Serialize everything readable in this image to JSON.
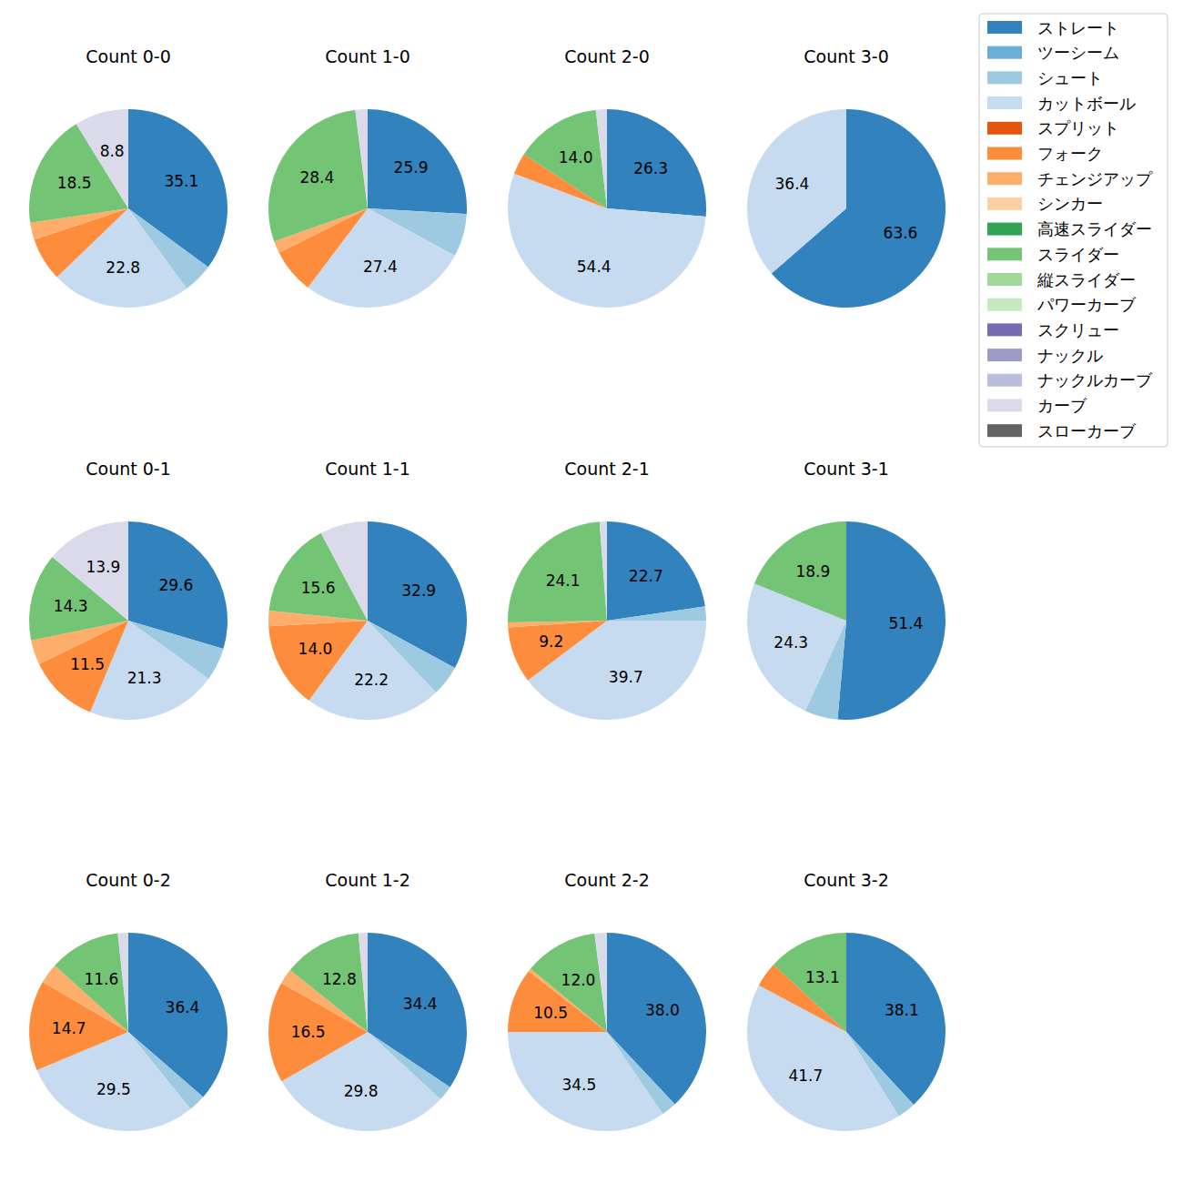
{
  "chart_data": {
    "type": "pie",
    "legend": "upper right",
    "data_labels": true,
    "categories": [
      "ストレート",
      "ツーシーム",
      "シュート",
      "カットボール",
      "スプリット",
      "フォーク",
      "チェンジアップ",
      "シンカー",
      "高速スライダー",
      "スライダー",
      "縦スライダー",
      "パワーカーブ",
      "スクリュー",
      "ナックル",
      "ナックルカーブ",
      "カーブ",
      "スローカーブ"
    ],
    "colors": [
      "#3182bd",
      "#6baed6",
      "#9ecae1",
      "#c6dbef",
      "#e6550d",
      "#fd8d3c",
      "#fdae6b",
      "#fdd0a2",
      "#31a354",
      "#74c476",
      "#a1d99b",
      "#c7e9c0",
      "#756bb1",
      "#9e9ac8",
      "#bcbddc",
      "#dadaeb",
      "#636363"
    ],
    "series": [
      {
        "name": "Count 0-0",
        "values": [
          35.1,
          0,
          4.9,
          22.8,
          0,
          7.1,
          2.8,
          0,
          0,
          18.5,
          0,
          0,
          0,
          0,
          0,
          8.8,
          0
        ],
        "value_labels": [
          "35.1",
          null,
          null,
          "22.8",
          null,
          null,
          null,
          null,
          null,
          "18.5",
          null,
          null,
          null,
          null,
          null,
          "8.8",
          null
        ]
      },
      {
        "name": "Count 1-0",
        "values": [
          25.9,
          0,
          7.0,
          27.4,
          0,
          7.3,
          2.0,
          0,
          0,
          28.4,
          0,
          0,
          0,
          0,
          0,
          2.0,
          0
        ],
        "value_labels": [
          "25.9",
          null,
          null,
          "27.4",
          null,
          null,
          null,
          null,
          null,
          "28.4",
          null,
          null,
          null,
          null,
          null,
          null,
          null
        ]
      },
      {
        "name": "Count 2-0",
        "values": [
          26.3,
          0,
          0,
          54.4,
          0,
          3.5,
          0,
          0,
          0,
          14.0,
          0,
          0,
          0,
          0,
          0,
          1.8,
          0
        ],
        "value_labels": [
          "26.3",
          null,
          null,
          "54.4",
          null,
          null,
          null,
          null,
          null,
          "14.0",
          null,
          null,
          null,
          null,
          null,
          null,
          null
        ]
      },
      {
        "name": "Count 3-0",
        "values": [
          63.6,
          0,
          0,
          36.4,
          0,
          0,
          0,
          0,
          0,
          0,
          0,
          0,
          0,
          0,
          0,
          0,
          0
        ],
        "value_labels": [
          "63.6",
          null,
          null,
          "36.4",
          null,
          null,
          null,
          null,
          null,
          null,
          null,
          null,
          null,
          null,
          null,
          null,
          null
        ]
      },
      {
        "name": "Count 0-1",
        "values": [
          29.6,
          0,
          5.4,
          21.3,
          0,
          11.5,
          4.0,
          0,
          0,
          14.3,
          0,
          0,
          0,
          0,
          0,
          13.9,
          0
        ],
        "value_labels": [
          "29.6",
          null,
          null,
          "21.3",
          null,
          "11.5",
          null,
          null,
          null,
          "14.3",
          null,
          null,
          null,
          null,
          null,
          "13.9",
          null
        ]
      },
      {
        "name": "Count 1-1",
        "values": [
          32.9,
          0,
          5.0,
          22.2,
          0,
          14.0,
          2.5,
          0,
          0,
          15.6,
          0,
          0,
          0,
          0,
          0,
          7.8,
          0
        ],
        "value_labels": [
          "32.9",
          null,
          null,
          "22.2",
          null,
          "14.0",
          null,
          null,
          null,
          "15.6",
          null,
          null,
          null,
          null,
          null,
          null,
          null
        ]
      },
      {
        "name": "Count 2-1",
        "values": [
          22.7,
          0,
          2.3,
          39.7,
          0,
          9.2,
          0.8,
          0,
          0,
          24.1,
          0,
          0,
          0,
          0,
          0,
          1.2,
          0
        ],
        "value_labels": [
          "22.7",
          null,
          null,
          "39.7",
          null,
          "9.2",
          null,
          null,
          null,
          "24.1",
          null,
          null,
          null,
          null,
          null,
          null,
          null
        ]
      },
      {
        "name": "Count 3-1",
        "values": [
          51.4,
          0,
          5.4,
          24.3,
          0,
          0,
          0,
          0,
          0,
          18.9,
          0,
          0,
          0,
          0,
          0,
          0,
          0
        ],
        "value_labels": [
          "51.4",
          null,
          null,
          "24.3",
          null,
          null,
          null,
          null,
          null,
          "18.9",
          null,
          null,
          null,
          null,
          null,
          null,
          null
        ]
      },
      {
        "name": "Count 0-2",
        "values": [
          36.4,
          0,
          2.8,
          29.5,
          0,
          14.7,
          3.3,
          0,
          0,
          11.6,
          0,
          0,
          0,
          0,
          0,
          1.7,
          0
        ],
        "value_labels": [
          "36.4",
          null,
          null,
          "29.5",
          null,
          "14.7",
          null,
          null,
          null,
          "11.6",
          null,
          null,
          null,
          null,
          null,
          null,
          null
        ]
      },
      {
        "name": "Count 1-2",
        "values": [
          34.4,
          0,
          2.5,
          29.8,
          0,
          16.5,
          2.5,
          0,
          0,
          12.8,
          0,
          0,
          0,
          0,
          0,
          1.5,
          0
        ],
        "value_labels": [
          "34.4",
          null,
          null,
          "29.8",
          null,
          "16.5",
          null,
          null,
          null,
          "12.8",
          null,
          null,
          null,
          null,
          null,
          null,
          null
        ]
      },
      {
        "name": "Count 2-2",
        "values": [
          38.0,
          0,
          2.5,
          34.5,
          0,
          10.5,
          0.5,
          0,
          0,
          12.0,
          0,
          0,
          0,
          0,
          0,
          2.0,
          0
        ],
        "value_labels": [
          "38.0",
          null,
          null,
          "34.5",
          null,
          "10.5",
          null,
          null,
          null,
          "12.0",
          null,
          null,
          null,
          null,
          null,
          null,
          null
        ]
      },
      {
        "name": "Count 3-2",
        "values": [
          38.1,
          0,
          3.0,
          41.7,
          0,
          4.1,
          0,
          0,
          0,
          13.1,
          0,
          0,
          0,
          0,
          0,
          0,
          0
        ],
        "value_labels": [
          "38.1",
          null,
          null,
          "41.7",
          null,
          null,
          null,
          null,
          null,
          "13.1",
          null,
          null,
          null,
          null,
          null,
          null,
          null
        ]
      }
    ]
  }
}
